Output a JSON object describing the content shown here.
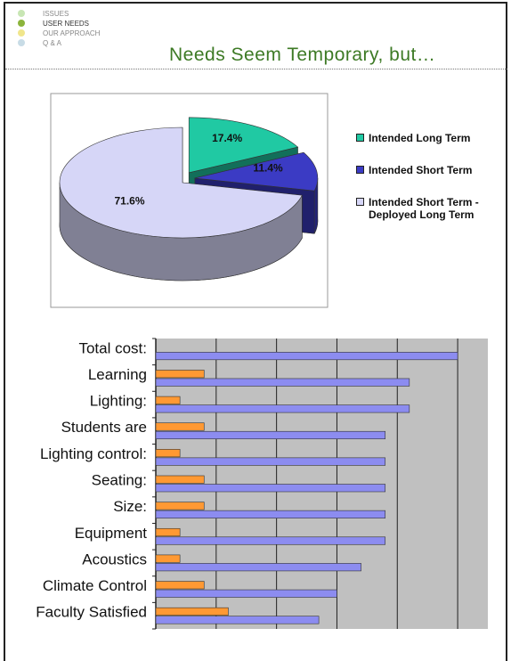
{
  "nav": [
    "ISSUES",
    "USER NEEDS",
    "OUR APPROACH",
    "Q & A"
  ],
  "title": "Needs Seem Temporary, but…",
  "chart_data": [
    {
      "type": "pie",
      "categories": [
        "Intended Long Term",
        "Intended Short Term",
        "Intended Short Term - Deployed Long Term"
      ],
      "values": [
        17.4,
        11.4,
        71.6
      ],
      "value_labels": [
        "17.4%",
        "11.4%",
        "71.6%"
      ],
      "colors": [
        "#20c9a3",
        "#3b3bc4",
        "#d6d6f7"
      ],
      "legend": "right"
    },
    {
      "type": "hbar",
      "categories": [
        "Total cost:",
        "Learning",
        "Lighting:",
        "Students are",
        "Lighting control:",
        "Seating:",
        "Size:",
        "Equipment",
        "Acoustics",
        "Climate Control",
        "Faculty Satisfied"
      ],
      "series": [
        {
          "color": "#ff9933",
          "values": [
            null,
            0.8,
            0.4,
            0.8,
            0.4,
            0.8,
            0.8,
            0.4,
            0.4,
            0.8,
            1.2
          ]
        },
        {
          "color": "#8c8cf0",
          "values": [
            5.0,
            4.2,
            4.2,
            3.8,
            3.8,
            3.8,
            3.8,
            3.8,
            3.4,
            3.0,
            2.7
          ]
        }
      ],
      "xlim": [
        0,
        5.5
      ],
      "xticks": [
        0,
        1,
        2,
        3,
        4,
        5
      ],
      "grid": true
    }
  ]
}
